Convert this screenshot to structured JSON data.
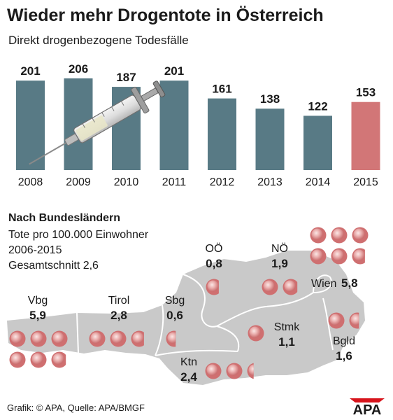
{
  "title": "Wieder mehr Drogentote in Österreich",
  "subtitle": "Direkt drogenbezogene Todesfälle",
  "chart_data": [
    {
      "type": "bar",
      "title": "Wieder mehr Drogentote in Österreich",
      "subtitle": "Direkt drogenbezogene Todesfälle",
      "categories": [
        "2008",
        "2009",
        "2010",
        "2011",
        "2012",
        "2013",
        "2014",
        "2015"
      ],
      "values": [
        201,
        206,
        187,
        201,
        161,
        138,
        122,
        153
      ],
      "highlight": "2015",
      "colors": {
        "bar": "#587a85",
        "highlight": "#d27677"
      },
      "grid": false
    },
    {
      "type": "map",
      "title": "Nach Bundesländern",
      "subtitle_lines": [
        "Tote pro 100.000 Einwohner",
        "2006-2015",
        "Gesamtschnitt 2,6"
      ],
      "regions": [
        {
          "name": "Vbg",
          "value_label": "5,9",
          "value": 5.9
        },
        {
          "name": "Tirol",
          "value_label": "2,8",
          "value": 2.8
        },
        {
          "name": "Sbg",
          "value_label": "0,6",
          "value": 0.6
        },
        {
          "name": "OÖ",
          "value_label": "0,8",
          "value": 0.8
        },
        {
          "name": "NÖ",
          "value_label": "1,9",
          "value": 1.9
        },
        {
          "name": "Wien",
          "value_label": "5,8",
          "value": 5.8
        },
        {
          "name": "Stmk",
          "value_label": "1,1",
          "value": 1.1
        },
        {
          "name": "Bgld",
          "value_label": "1,6",
          "value": 1.6
        },
        {
          "name": "Ktn",
          "value_label": "2,4",
          "value": 2.4
        }
      ],
      "colors": {
        "map": "#c9c9c9",
        "border": "#ffffff",
        "dot": "#d27677",
        "dot_light": "#f4d3d2"
      }
    }
  ],
  "footer": "Grafik: © APA, Quelle: APA/BMGF",
  "logo_text": "APA",
  "logo_color": "#d7141c"
}
